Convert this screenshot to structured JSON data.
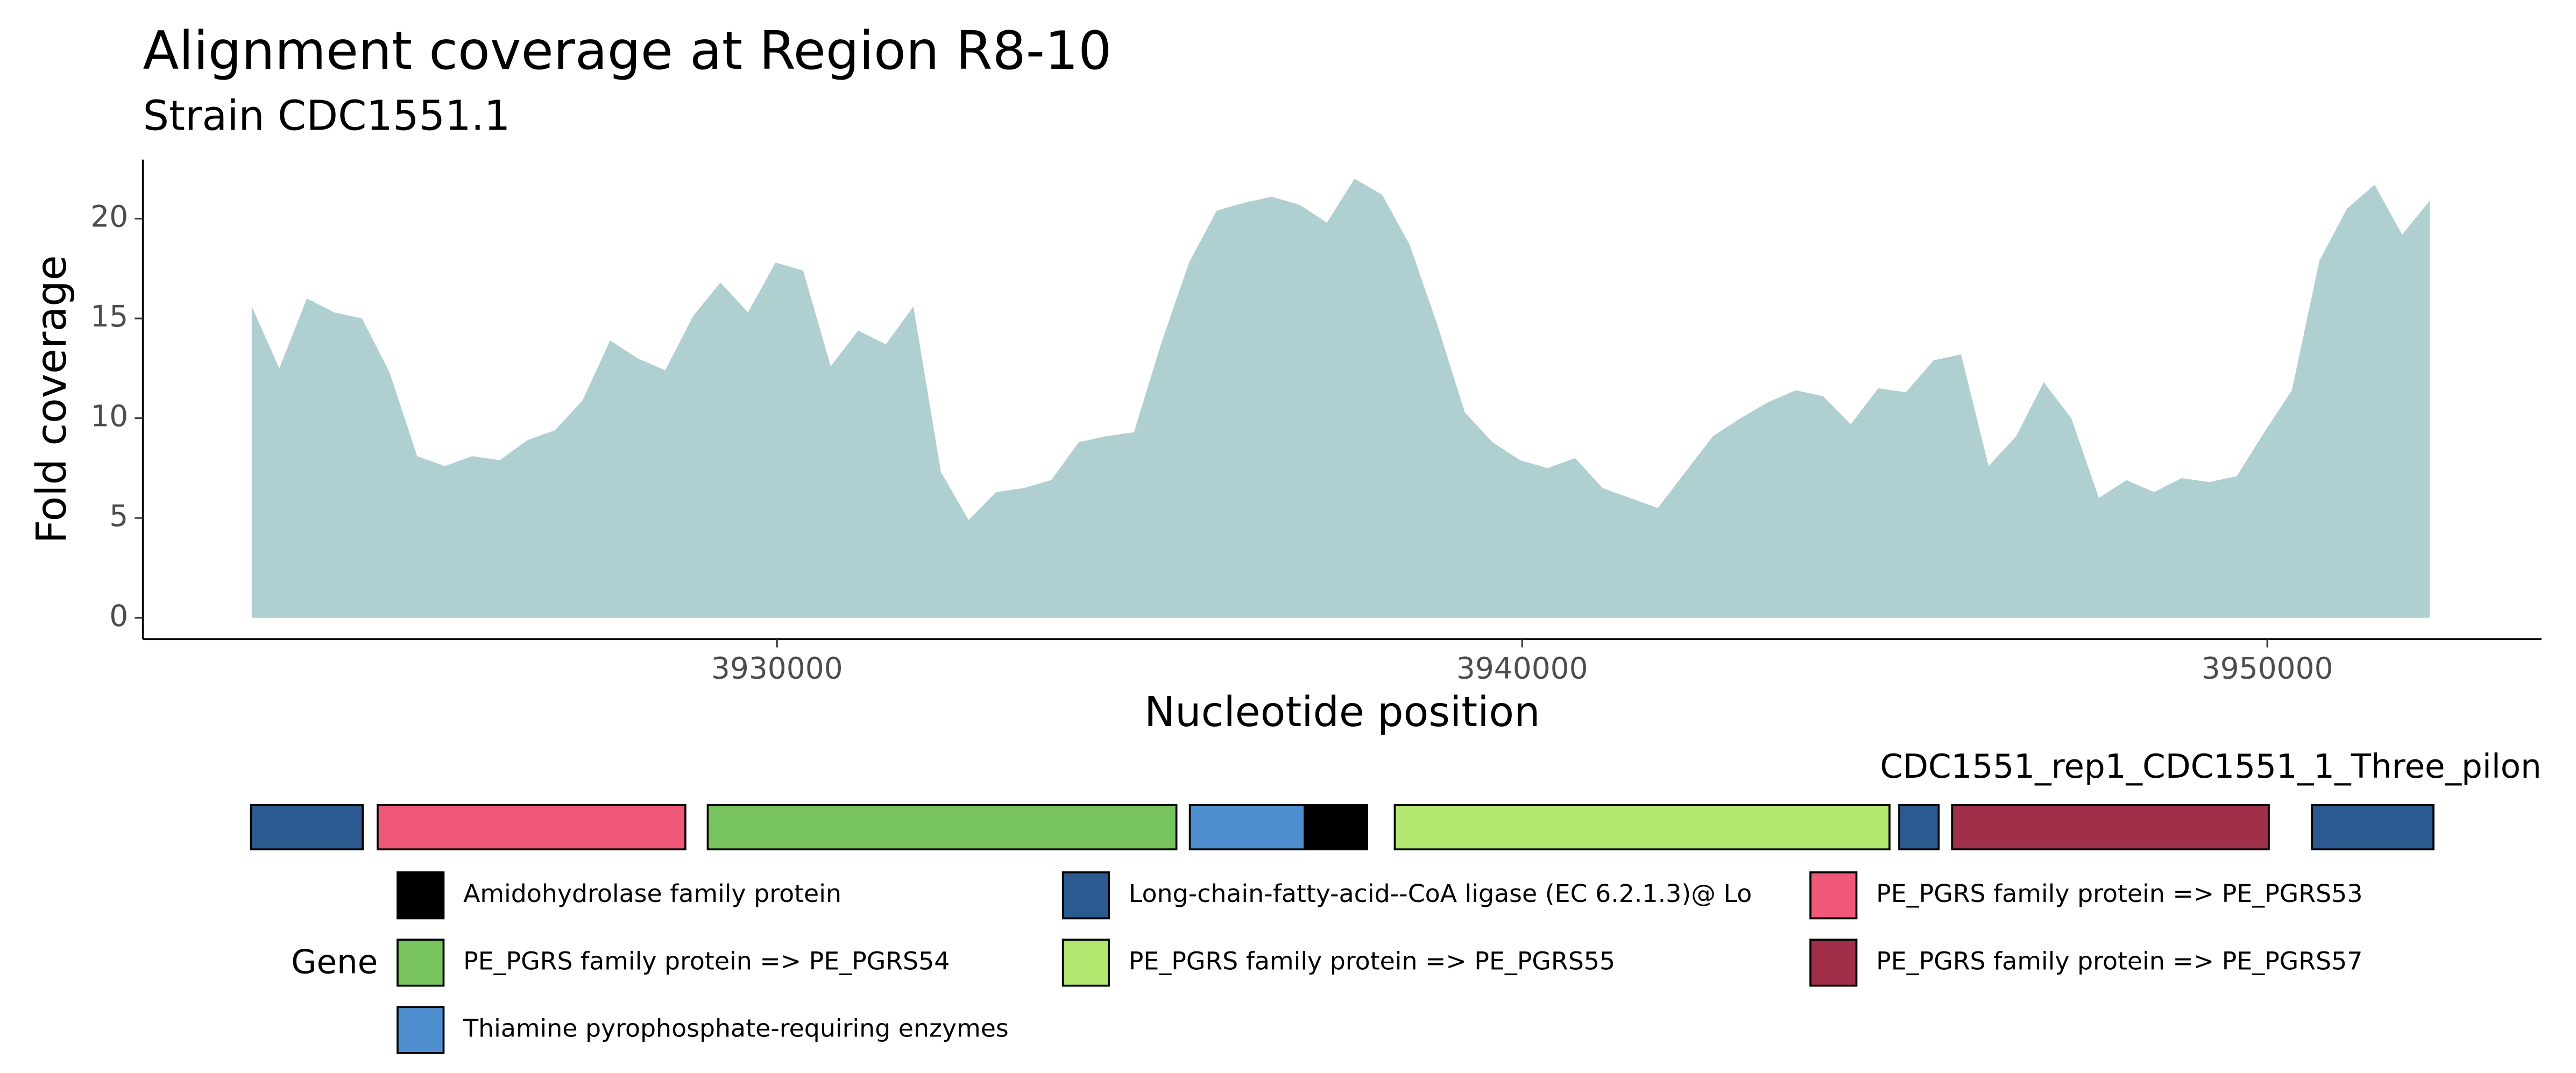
{
  "chart_data": {
    "type": "area",
    "title": "Alignment coverage at Region R8-10",
    "subtitle": "Strain CDC1551.1",
    "xlabel": "Nucleotide position",
    "ylabel": "Fold coverage",
    "color": "#b0cfd1",
    "x": [
      3922950,
      3923320,
      3923690,
      3924060,
      3924430,
      3924800,
      3925170,
      3925540,
      3925910,
      3926280,
      3926650,
      3927020,
      3927390,
      3927760,
      3928130,
      3928500,
      3928870,
      3929240,
      3929610,
      3929980,
      3930350,
      3930720,
      3931090,
      3931460,
      3931830,
      3932200,
      3932570,
      3932940,
      3933310,
      3933680,
      3934050,
      3934420,
      3934790,
      3935160,
      3935530,
      3935900,
      3936270,
      3936640,
      3937010,
      3937380,
      3937750,
      3938120,
      3938490,
      3938860,
      3939230,
      3939600,
      3939970,
      3940340,
      3940710,
      3941080,
      3941450,
      3941820,
      3942190,
      3942560,
      3942930,
      3943300,
      3943670,
      3944040,
      3944410,
      3944780,
      3945150,
      3945520,
      3945890,
      3946260,
      3946630,
      3947000,
      3947370,
      3947740,
      3948110,
      3948480,
      3948850,
      3949220,
      3949590,
      3949960,
      3950330,
      3950700,
      3951070,
      3951440,
      3951810,
      3952180
    ],
    "values": [
      15.6,
      12.5,
      16.0,
      15.3,
      15.0,
      12.3,
      8.1,
      7.6,
      8.1,
      7.9,
      8.9,
      9.4,
      10.9,
      13.9,
      13.0,
      12.4,
      15.1,
      16.8,
      15.3,
      17.8,
      17.4,
      12.6,
      14.4,
      13.7,
      15.6,
      7.3,
      4.9,
      6.3,
      6.5,
      6.9,
      8.8,
      9.1,
      9.3,
      13.8,
      17.8,
      20.4,
      20.8,
      21.1,
      20.7,
      19.8,
      22.0,
      21.2,
      18.7,
      14.7,
      10.3,
      8.8,
      7.9,
      7.5,
      8.0,
      6.5,
      6.0,
      5.5,
      7.3,
      9.1,
      10.0,
      10.8,
      11.4,
      11.1,
      9.7,
      11.5,
      11.3,
      12.9,
      13.2,
      7.6,
      9.1,
      11.8,
      10.0,
      6.0,
      6.9,
      6.3,
      7.0,
      6.8,
      7.1,
      9.3,
      11.4,
      17.9,
      20.5,
      21.7,
      19.2,
      20.9
    ],
    "xlim": [
      3921490,
      3953680
    ],
    "ylim": [
      -1.07,
      22.96
    ],
    "xticks": [
      3930000,
      3940000,
      3950000
    ],
    "yticks": [
      0,
      5,
      10,
      15,
      20
    ],
    "track_label": "CDC1551_rep1_CDC1551_1_Three_pilon",
    "genes": [
      {
        "start": 3922940,
        "end": 3924440,
        "color": "#2a5a8f"
      },
      {
        "start": 3924640,
        "end": 3928770,
        "color": "#f0587a"
      },
      {
        "start": 3929070,
        "end": 3935360,
        "color": "#77c45e"
      },
      {
        "start": 3935540,
        "end": 3937080,
        "color": "#4f8fd0"
      },
      {
        "start": 3937080,
        "end": 3937920,
        "color": "#000000"
      },
      {
        "start": 3938290,
        "end": 3944930,
        "color": "#b3e66e"
      },
      {
        "start": 3945060,
        "end": 3945590,
        "color": "#2a5a8f"
      },
      {
        "start": 3945770,
        "end": 3950020,
        "color": "#a0304a"
      },
      {
        "start": 3950600,
        "end": 3952230,
        "color": "#2a5a8f"
      }
    ],
    "legend": {
      "title": "Gene",
      "items": [
        {
          "name": "Amidohydrolase family protein",
          "color": "#000000"
        },
        {
          "name": "Long-chain-fatty-acid--CoA ligase (EC 6.2.1.3)@ Lo",
          "color": "#2a5a8f"
        },
        {
          "name": "PE_PGRS family protein => PE_PGRS53",
          "color": "#f0587a"
        },
        {
          "name": "PE_PGRS family protein => PE_PGRS54",
          "color": "#77c45e"
        },
        {
          "name": "PE_PGRS family protein => PE_PGRS55",
          "color": "#b3e66e"
        },
        {
          "name": "PE_PGRS family protein => PE_PGRS57",
          "color": "#a0304a"
        },
        {
          "name": "Thiamine pyrophosphate-requiring enzymes",
          "color": "#4f8fd0"
        }
      ]
    }
  }
}
